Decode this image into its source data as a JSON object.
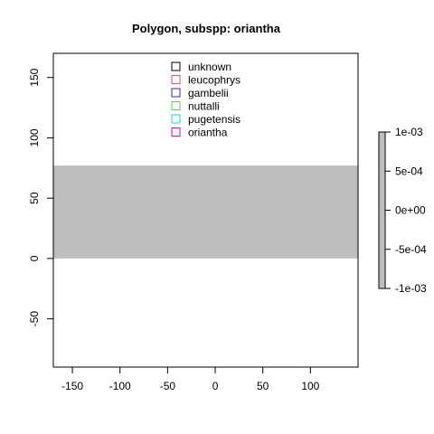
{
  "chart_data": {
    "type": "map",
    "title": "Polygon, subspp: oriantha",
    "xlabel": "",
    "ylabel": "",
    "xlim": [
      -170,
      150
    ],
    "ylim": [
      -90,
      170
    ],
    "x_ticks": [
      -150,
      -100,
      -50,
      0,
      50,
      100
    ],
    "x_tick_labels": [
      "-150",
      "-100",
      "-50",
      "0",
      "50",
      "100"
    ],
    "y_ticks": [
      -50,
      0,
      50,
      100,
      150
    ],
    "y_tick_labels": [
      "-50",
      "0",
      "50",
      "100",
      "150"
    ],
    "grid": false,
    "legend_position": "top-center",
    "legend": [
      {
        "name": "unknown",
        "color": "#000000"
      },
      {
        "name": "leucophrys",
        "color": "#DF536B"
      },
      {
        "name": "gambelii",
        "color": "#2E2EAA"
      },
      {
        "name": "nuttalli",
        "color": "#61D04F"
      },
      {
        "name": "pugetensis",
        "color": "#22CCE0"
      },
      {
        "name": "oriantha",
        "color": "#CD0BBC"
      }
    ],
    "raster": {
      "x_range": [
        -170,
        150
      ],
      "y_range": [
        0,
        77
      ],
      "value": 0,
      "fill_color": "#BEBEBE"
    },
    "colorbar": {
      "fill_color": "#BEBEBE",
      "range": [
        -0.001,
        0.001
      ],
      "ticks": [
        0.001,
        0.0005,
        0,
        -0.0005,
        -0.001
      ],
      "tick_labels": [
        "1e-03",
        "5e-04",
        "0e+00",
        "-5e-04",
        "-1e-03"
      ]
    }
  }
}
